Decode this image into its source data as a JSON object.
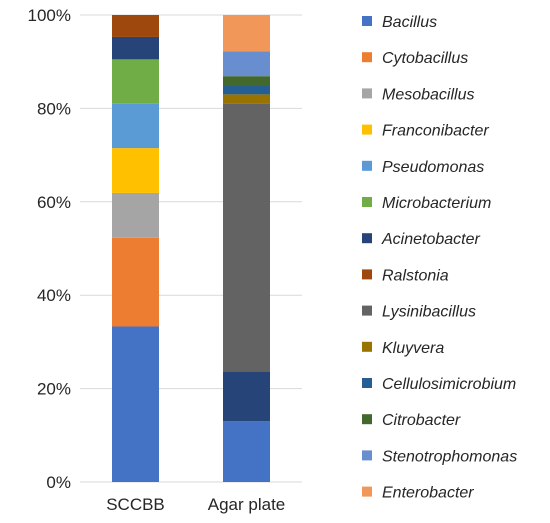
{
  "chart_data": {
    "type": "bar",
    "stacked": "percent",
    "categories": [
      "SCCBB",
      "Agar plate"
    ],
    "ylim": [
      0,
      100
    ],
    "yticks": [
      "0%",
      "20%",
      "40%",
      "60%",
      "80%",
      "100%"
    ],
    "grid": true,
    "legend_position": "right",
    "series": [
      {
        "name": "Bacillus",
        "color": "#4472C4",
        "values": [
          33.3,
          13.0
        ]
      },
      {
        "name": "Cytobacillus",
        "color": "#ED7D31",
        "values": [
          19.0,
          0
        ]
      },
      {
        "name": "Mesobacillus",
        "color": "#A5A5A5",
        "values": [
          9.6,
          0
        ]
      },
      {
        "name": "Franconibacter",
        "color": "#FFC000",
        "values": [
          9.6,
          0
        ]
      },
      {
        "name": "Pseudomonas",
        "color": "#5B9BD5",
        "values": [
          9.6,
          0
        ]
      },
      {
        "name": "Microbacterium",
        "color": "#70AD47",
        "values": [
          9.4,
          0
        ]
      },
      {
        "name": "Acinetobacter",
        "color": "#264478",
        "values": [
          4.8,
          10.7
        ]
      },
      {
        "name": "Ralstonia",
        "color": "#9E480E",
        "values": [
          4.7,
          0
        ]
      },
      {
        "name": "Lysinibacillus",
        "color": "#636363",
        "values": [
          0,
          57.4
        ]
      },
      {
        "name": "Kluyvera",
        "color": "#997300",
        "values": [
          0,
          1.9
        ]
      },
      {
        "name": "Cellulosimicrobium",
        "color": "#255E91",
        "values": [
          0,
          1.8
        ]
      },
      {
        "name": "Citrobacter",
        "color": "#43682B",
        "values": [
          0,
          2.1
        ]
      },
      {
        "name": "Stenotrophomonas",
        "color": "#698ED0",
        "values": [
          0,
          5.3
        ]
      },
      {
        "name": "Enterobacter",
        "color": "#F1975A",
        "values": [
          0,
          7.8
        ]
      }
    ]
  }
}
